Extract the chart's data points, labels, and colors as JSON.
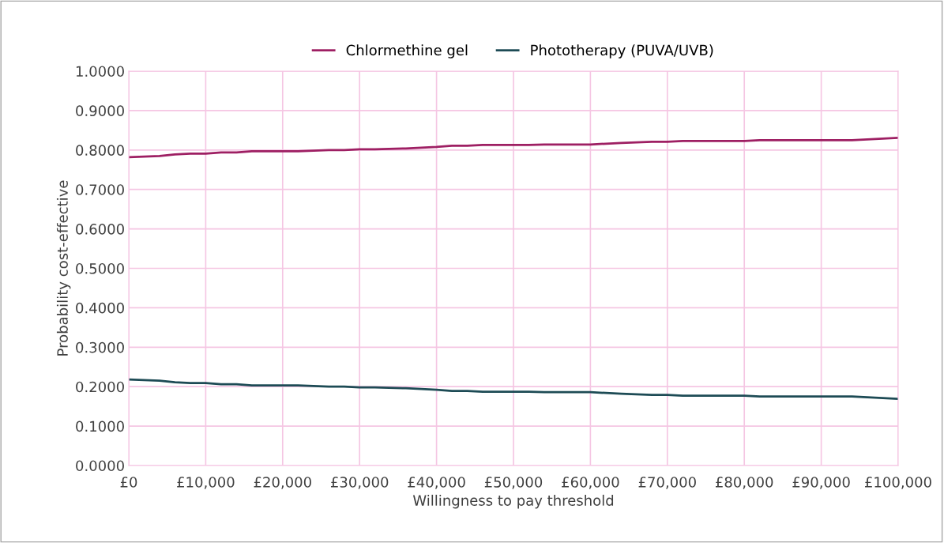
{
  "chart_data": {
    "type": "line",
    "xlabel": "Willingness to pay threshold",
    "ylabel": "Probability cost-effective",
    "x": [
      0,
      4000,
      6000,
      8000,
      10000,
      12000,
      14000,
      16000,
      22000,
      26000,
      28000,
      30000,
      32000,
      36000,
      40000,
      42000,
      44000,
      46000,
      52000,
      54000,
      60000,
      64000,
      68000,
      70000,
      72000,
      80000,
      82000,
      94000,
      100000
    ],
    "series": [
      {
        "name": "Chlormethine gel",
        "color": "#9e1f63",
        "values": [
          0.782,
          0.785,
          0.789,
          0.791,
          0.791,
          0.794,
          0.794,
          0.797,
          0.797,
          0.8,
          0.8,
          0.802,
          0.802,
          0.804,
          0.808,
          0.811,
          0.811,
          0.813,
          0.813,
          0.814,
          0.814,
          0.818,
          0.821,
          0.821,
          0.823,
          0.823,
          0.825,
          0.825,
          0.831
        ]
      },
      {
        "name": "Phototherapy (PUVA/UVB)",
        "color": "#1d4b55",
        "values": [
          0.218,
          0.215,
          0.211,
          0.209,
          0.209,
          0.206,
          0.206,
          0.203,
          0.203,
          0.2,
          0.2,
          0.198,
          0.198,
          0.196,
          0.192,
          0.189,
          0.189,
          0.187,
          0.187,
          0.186,
          0.186,
          0.182,
          0.179,
          0.179,
          0.177,
          0.177,
          0.175,
          0.175,
          0.169
        ]
      }
    ],
    "xlim": [
      0,
      100000
    ],
    "xticks": [
      {
        "value": 0,
        "label": "£0"
      },
      {
        "value": 10000,
        "label": "£10,000"
      },
      {
        "value": 20000,
        "label": "£20,000"
      },
      {
        "value": 30000,
        "label": "£30,000"
      },
      {
        "value": 40000,
        "label": "£40,000"
      },
      {
        "value": 50000,
        "label": "£50,000"
      },
      {
        "value": 60000,
        "label": "£60,000"
      },
      {
        "value": 70000,
        "label": "£70,000"
      },
      {
        "value": 80000,
        "label": "£80,000"
      },
      {
        "value": 90000,
        "label": "£90,000"
      },
      {
        "value": 100000,
        "label": "£100,000"
      }
    ],
    "ylim": [
      0,
      1
    ],
    "yticks": [
      {
        "value": 0,
        "label": "0.0000"
      },
      {
        "value": 0.1,
        "label": "0.1000"
      },
      {
        "value": 0.2,
        "label": "0.2000"
      },
      {
        "value": 0.3,
        "label": "0.3000"
      },
      {
        "value": 0.4,
        "label": "0.4000"
      },
      {
        "value": 0.5,
        "label": "0.5000"
      },
      {
        "value": 0.6,
        "label": "0.6000"
      },
      {
        "value": 0.7,
        "label": "0.7000"
      },
      {
        "value": 0.8,
        "label": "0.8000"
      },
      {
        "value": 0.9,
        "label": "0.9000"
      },
      {
        "value": 1,
        "label": "1.0000"
      }
    ],
    "grid": true,
    "legend": "top",
    "marker": "none",
    "line_style": "solid"
  }
}
